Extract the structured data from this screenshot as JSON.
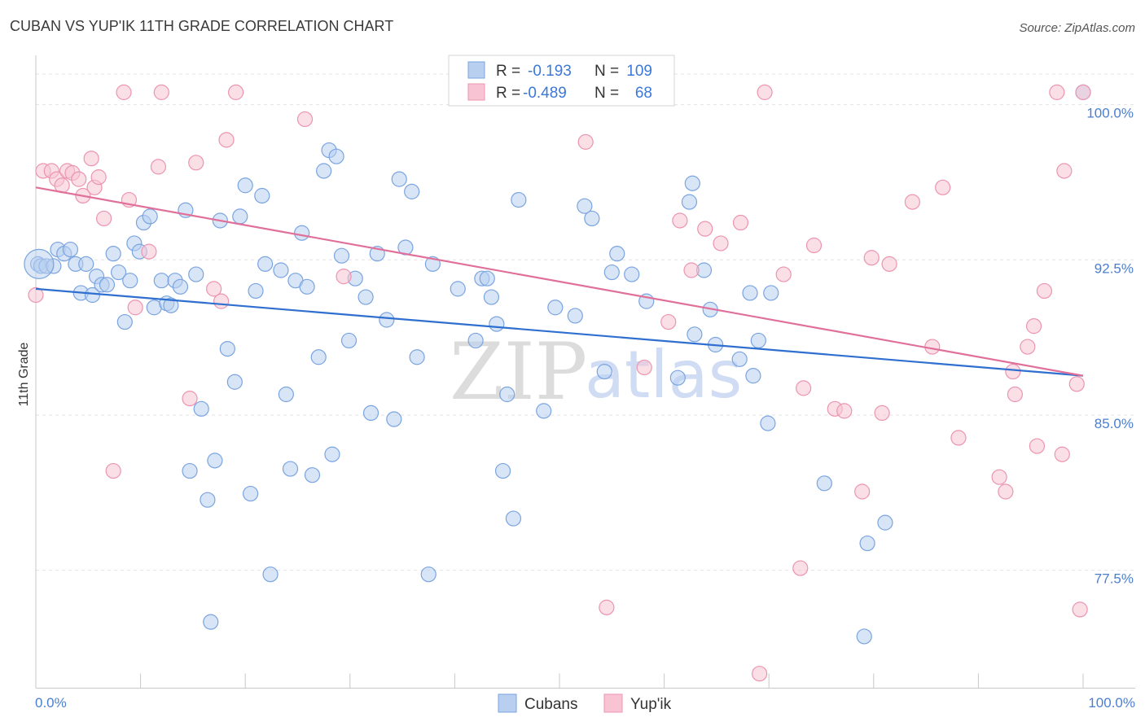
{
  "header": {
    "title": "CUBAN VS YUP'IK 11TH GRADE CORRELATION CHART",
    "source": "Source: ZipAtlas.com"
  },
  "watermark": {
    "zip": "ZIP",
    "atlas": "atlas"
  },
  "legend": {
    "rows": [
      {
        "r_label": "R =",
        "r_value": "-0.193",
        "n_label": "N =",
        "n_value": "109"
      },
      {
        "r_label": "R =",
        "r_value": "-0.489",
        "n_label": "N =",
        "n_value": "68"
      }
    ]
  },
  "bottom_legend": {
    "series1": "Cubans",
    "series2": "Yup'ik"
  },
  "colors": {
    "cubans_fill": "#b8cff0",
    "cubans_stroke": "#7aa4e0",
    "cubans_line": "#2f6fcf",
    "yupik_fill": "#f8c4d4",
    "yupik_stroke": "#ec94b0",
    "yupik_line": "#e0709a",
    "grid": "#e3e3e3",
    "axis": "#c8c8c8"
  },
  "chart_data": {
    "type": "scatter",
    "xlabel": "",
    "ylabel": "11th Grade",
    "xlim": [
      0,
      100
    ],
    "ylim": [
      71.8,
      101.5
    ],
    "x_tick_labels": [
      "0.0%",
      "100.0%"
    ],
    "y_ticks": [
      {
        "value": 100.0,
        "label": "100.0%"
      },
      {
        "value": 92.5,
        "label": "92.5%"
      },
      {
        "value": 85.0,
        "label": "85.0%"
      },
      {
        "value": 77.5,
        "label": "77.5%"
      }
    ],
    "grid": true,
    "legend_position": "top-center",
    "series": [
      {
        "name": "Cubans",
        "trend": {
          "x": [
            0,
            100
          ],
          "y": [
            91.1,
            86.9
          ]
        },
        "points": [
          [
            0.2,
            92.3
          ],
          [
            0.5,
            92.2
          ],
          [
            1,
            92.2
          ],
          [
            1.7,
            92.2
          ],
          [
            2.1,
            93.0
          ],
          [
            2.7,
            92.8
          ],
          [
            3.3,
            93.0
          ],
          [
            3.8,
            92.3
          ],
          [
            4.3,
            90.9
          ],
          [
            4.8,
            92.3
          ],
          [
            5.4,
            90.8
          ],
          [
            5.8,
            91.7
          ],
          [
            6.3,
            91.3
          ],
          [
            6.8,
            91.3
          ],
          [
            7.4,
            92.8
          ],
          [
            7.9,
            91.9
          ],
          [
            8.5,
            89.5
          ],
          [
            9.0,
            91.5
          ],
          [
            9.4,
            93.3
          ],
          [
            9.9,
            92.9
          ],
          [
            10.3,
            94.3
          ],
          [
            10.9,
            94.6
          ],
          [
            11.3,
            90.2
          ],
          [
            12.0,
            91.5
          ],
          [
            12.5,
            90.4
          ],
          [
            12.9,
            90.3
          ],
          [
            13.3,
            91.5
          ],
          [
            13.8,
            91.2
          ],
          [
            14.3,
            94.9
          ],
          [
            14.7,
            82.3
          ],
          [
            15.3,
            91.8
          ],
          [
            15.8,
            85.3
          ],
          [
            16.4,
            80.9
          ],
          [
            16.7,
            75.0
          ],
          [
            17.1,
            82.8
          ],
          [
            17.6,
            94.4
          ],
          [
            18.3,
            88.2
          ],
          [
            19.0,
            86.6
          ],
          [
            19.5,
            94.6
          ],
          [
            20.0,
            96.1
          ],
          [
            20.5,
            81.2
          ],
          [
            21.0,
            91.0
          ],
          [
            21.6,
            95.6
          ],
          [
            21.9,
            92.3
          ],
          [
            22.4,
            77.3
          ],
          [
            23.4,
            92.0
          ],
          [
            23.9,
            86.0
          ],
          [
            24.3,
            82.4
          ],
          [
            24.8,
            91.5
          ],
          [
            25.4,
            93.8
          ],
          [
            25.9,
            91.2
          ],
          [
            26.4,
            82.1
          ],
          [
            27.0,
            87.8
          ],
          [
            27.5,
            96.8
          ],
          [
            28.0,
            97.8
          ],
          [
            28.3,
            83.1
          ],
          [
            28.7,
            97.5
          ],
          [
            29.2,
            92.7
          ],
          [
            29.9,
            88.6
          ],
          [
            30.5,
            91.6
          ],
          [
            31.5,
            90.7
          ],
          [
            32.0,
            85.1
          ],
          [
            32.6,
            92.8
          ],
          [
            33.5,
            89.6
          ],
          [
            34.2,
            84.8
          ],
          [
            34.7,
            96.4
          ],
          [
            35.3,
            93.1
          ],
          [
            35.9,
            95.8
          ],
          [
            36.4,
            87.8
          ],
          [
            37.5,
            77.3
          ],
          [
            37.9,
            92.3
          ],
          [
            40.3,
            91.1
          ],
          [
            42.0,
            88.6
          ],
          [
            42.6,
            91.6
          ],
          [
            43.1,
            91.6
          ],
          [
            43.5,
            90.7
          ],
          [
            44.0,
            89.4
          ],
          [
            44.6,
            82.3
          ],
          [
            45.0,
            86.0
          ],
          [
            45.6,
            80.0
          ],
          [
            46.1,
            95.4
          ],
          [
            48.5,
            85.2
          ],
          [
            49.6,
            90.2
          ],
          [
            51.5,
            89.8
          ],
          [
            52.4,
            95.1
          ],
          [
            53.1,
            94.5
          ],
          [
            54.3,
            87.1
          ],
          [
            55.0,
            91.9
          ],
          [
            55.5,
            92.8
          ],
          [
            56.9,
            91.8
          ],
          [
            58.3,
            90.5
          ],
          [
            61.3,
            86.8
          ],
          [
            62.4,
            95.3
          ],
          [
            62.7,
            96.2
          ],
          [
            62.9,
            88.9
          ],
          [
            63.8,
            92.0
          ],
          [
            64.4,
            90.1
          ],
          [
            64.9,
            88.4
          ],
          [
            67.2,
            87.7
          ],
          [
            68.2,
            90.9
          ],
          [
            68.5,
            86.9
          ],
          [
            69.0,
            88.6
          ],
          [
            69.9,
            84.6
          ],
          [
            70.2,
            90.9
          ],
          [
            75.3,
            81.7
          ],
          [
            79.1,
            74.3
          ],
          [
            79.4,
            78.8
          ],
          [
            81.1,
            79.8
          ],
          [
            100,
            100.6
          ]
        ]
      },
      {
        "name": "Yup'ik",
        "trend": {
          "x": [
            0,
            100
          ],
          "y": [
            96.0,
            86.9
          ]
        },
        "points": [
          [
            0,
            90.8
          ],
          [
            0.7,
            96.8
          ],
          [
            1.5,
            96.8
          ],
          [
            2.0,
            96.4
          ],
          [
            2.5,
            96.1
          ],
          [
            3.0,
            96.8
          ],
          [
            3.5,
            96.7
          ],
          [
            4.1,
            96.4
          ],
          [
            4.5,
            95.6
          ],
          [
            5.3,
            97.4
          ],
          [
            5.6,
            96.0
          ],
          [
            6.0,
            96.5
          ],
          [
            6.5,
            94.5
          ],
          [
            7.4,
            82.3
          ],
          [
            8.4,
            100.6
          ],
          [
            8.9,
            95.4
          ],
          [
            9.5,
            90.2
          ],
          [
            10.8,
            92.9
          ],
          [
            11.7,
            97.0
          ],
          [
            12.0,
            100.6
          ],
          [
            14.7,
            85.8
          ],
          [
            15.3,
            97.2
          ],
          [
            17.0,
            91.1
          ],
          [
            17.7,
            90.5
          ],
          [
            18.2,
            98.3
          ],
          [
            19.1,
            100.6
          ],
          [
            25.7,
            99.3
          ],
          [
            29.4,
            91.7
          ],
          [
            52.5,
            98.2
          ],
          [
            54.5,
            75.7
          ],
          [
            58.1,
            87.3
          ],
          [
            59.3,
            100.6
          ],
          [
            60.4,
            89.5
          ],
          [
            61.5,
            94.4
          ],
          [
            62.6,
            92.0
          ],
          [
            63.9,
            94.0
          ],
          [
            65.4,
            93.3
          ],
          [
            67.3,
            94.3
          ],
          [
            69.1,
            72.5
          ],
          [
            69.6,
            100.6
          ],
          [
            71.4,
            91.8
          ],
          [
            73.0,
            77.6
          ],
          [
            73.3,
            86.3
          ],
          [
            74.3,
            93.2
          ],
          [
            76.3,
            85.3
          ],
          [
            77.2,
            85.2
          ],
          [
            78.9,
            81.3
          ],
          [
            79.8,
            92.6
          ],
          [
            80.8,
            85.1
          ],
          [
            81.5,
            92.3
          ],
          [
            83.7,
            95.3
          ],
          [
            85.6,
            88.3
          ],
          [
            86.6,
            96.0
          ],
          [
            88.1,
            83.9
          ],
          [
            92.0,
            82.0
          ],
          [
            92.6,
            81.3
          ],
          [
            93.3,
            87.1
          ],
          [
            93.5,
            86.0
          ],
          [
            94.7,
            88.3
          ],
          [
            95.3,
            89.3
          ],
          [
            95.6,
            83.5
          ],
          [
            96.3,
            91.0
          ],
          [
            97.5,
            100.6
          ],
          [
            98.0,
            83.1
          ],
          [
            98.2,
            96.8
          ],
          [
            99.4,
            86.5
          ],
          [
            99.7,
            75.6
          ],
          [
            100,
            100.6
          ]
        ]
      }
    ]
  }
}
